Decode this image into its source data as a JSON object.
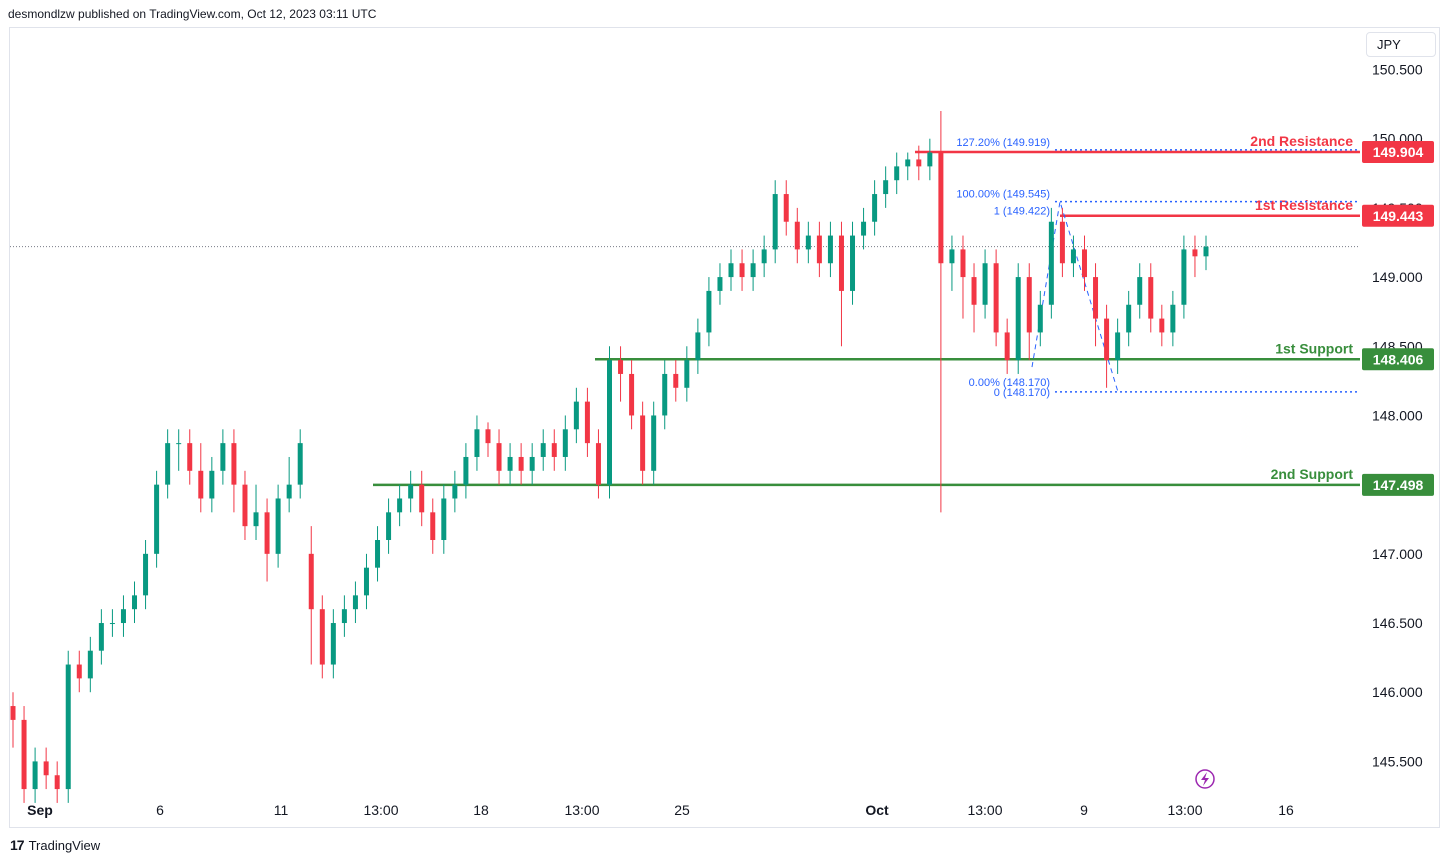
{
  "header": {
    "text": "desmondlzw published on TradingView.com, Oct 12, 2023 03:11 UTC"
  },
  "currency": "JPY",
  "footer": {
    "brand": "TradingView"
  },
  "colors": {
    "up": "#089981",
    "down": "#f23645",
    "support": "#388e3c",
    "resistance": "#f23645",
    "fib": "#2962ff"
  },
  "chart_data": {
    "type": "candlestick",
    "title": "",
    "y_ticks": [
      "150.500",
      "150.000",
      "149.500",
      "149.000",
      "148.500",
      "148.000",
      "147.000",
      "146.500",
      "146.000",
      "145.500"
    ],
    "x_ticks": [
      "Sep",
      "6",
      "11",
      "13:00",
      "18",
      "13:00",
      "25",
      "Oct",
      "13:00",
      "9",
      "13:00",
      "16"
    ],
    "ylim": [
      145.25,
      150.8
    ],
    "levels": [
      {
        "label": "2nd Resistance",
        "value": "149.904",
        "kind": "resistance"
      },
      {
        "label": "1st Resistance",
        "value": "149.443",
        "kind": "resistance"
      },
      {
        "label": "1st Support",
        "value": "148.406",
        "kind": "support"
      },
      {
        "label": "2nd Support",
        "value": "147.498",
        "kind": "support"
      }
    ],
    "fib_labels": [
      {
        "text": "127.20% (149.919)",
        "value": 149.919
      },
      {
        "text": "100.00% (149.545)",
        "value": 149.545
      },
      {
        "text": "1 (149.422)",
        "value": 149.422
      },
      {
        "text": "0.00% (148.170)",
        "value": 148.17
      },
      {
        "text": "0 (148.170)",
        "value": 148.17
      }
    ],
    "last_price": 149.22,
    "candles": [
      [
        145.9,
        145.8,
        146.0,
        145.6
      ],
      [
        145.8,
        145.3,
        145.9,
        145.2
      ],
      [
        145.3,
        145.5,
        145.6,
        145.2
      ],
      [
        145.5,
        145.4,
        145.6,
        145.3
      ],
      [
        145.4,
        145.3,
        145.5,
        145.2
      ],
      [
        145.3,
        146.2,
        146.3,
        145.2
      ],
      [
        146.2,
        146.1,
        146.3,
        146.0
      ],
      [
        146.1,
        146.3,
        146.4,
        146.0
      ],
      [
        146.3,
        146.5,
        146.6,
        146.2
      ],
      [
        146.5,
        146.5,
        146.6,
        146.4
      ],
      [
        146.5,
        146.6,
        146.7,
        146.4
      ],
      [
        146.6,
        146.7,
        146.8,
        146.5
      ],
      [
        146.7,
        147.0,
        147.1,
        146.6
      ],
      [
        147.0,
        147.5,
        147.6,
        146.9
      ],
      [
        147.5,
        147.8,
        147.9,
        147.4
      ],
      [
        147.8,
        147.8,
        147.9,
        147.6
      ],
      [
        147.8,
        147.6,
        147.9,
        147.5
      ],
      [
        147.6,
        147.4,
        147.8,
        147.3
      ],
      [
        147.4,
        147.6,
        147.7,
        147.3
      ],
      [
        147.6,
        147.8,
        147.9,
        147.5
      ],
      [
        147.8,
        147.5,
        147.9,
        147.3
      ],
      [
        147.5,
        147.2,
        147.6,
        147.1
      ],
      [
        147.2,
        147.3,
        147.5,
        147.1
      ],
      [
        147.3,
        147.0,
        147.4,
        146.8
      ],
      [
        147.0,
        147.4,
        147.5,
        146.9
      ],
      [
        147.4,
        147.5,
        147.7,
        147.3
      ],
      [
        147.5,
        147.8,
        147.9,
        147.4
      ],
      [
        147.0,
        146.6,
        147.2,
        146.2
      ],
      [
        146.6,
        146.2,
        146.7,
        146.1
      ],
      [
        146.2,
        146.5,
        146.6,
        146.1
      ],
      [
        146.5,
        146.6,
        146.7,
        146.4
      ],
      [
        146.6,
        146.7,
        146.8,
        146.5
      ],
      [
        146.7,
        146.9,
        147.0,
        146.6
      ],
      [
        146.9,
        147.1,
        147.2,
        146.8
      ],
      [
        147.1,
        147.3,
        147.4,
        147.0
      ],
      [
        147.3,
        147.4,
        147.5,
        147.2
      ],
      [
        147.4,
        147.5,
        147.6,
        147.3
      ],
      [
        147.5,
        147.3,
        147.6,
        147.2
      ],
      [
        147.3,
        147.1,
        147.4,
        147.0
      ],
      [
        147.1,
        147.4,
        147.5,
        147.0
      ],
      [
        147.4,
        147.5,
        147.6,
        147.3
      ],
      [
        147.5,
        147.7,
        147.8,
        147.4
      ],
      [
        147.7,
        147.9,
        148.0,
        147.6
      ],
      [
        147.9,
        147.8,
        147.95,
        147.7
      ],
      [
        147.8,
        147.6,
        147.9,
        147.5
      ],
      [
        147.6,
        147.7,
        147.8,
        147.5
      ],
      [
        147.7,
        147.6,
        147.8,
        147.5
      ],
      [
        147.6,
        147.7,
        147.8,
        147.5
      ],
      [
        147.7,
        147.8,
        147.9,
        147.6
      ],
      [
        147.8,
        147.7,
        147.9,
        147.6
      ],
      [
        147.7,
        147.9,
        148.0,
        147.6
      ],
      [
        147.9,
        148.1,
        148.2,
        147.8
      ],
      [
        148.1,
        147.8,
        148.2,
        147.7
      ],
      [
        147.8,
        147.5,
        147.9,
        147.4
      ],
      [
        147.5,
        148.4,
        148.5,
        147.4
      ],
      [
        148.4,
        148.3,
        148.5,
        148.1
      ],
      [
        148.3,
        148.0,
        148.4,
        147.9
      ],
      [
        148.0,
        147.6,
        148.1,
        147.5
      ],
      [
        147.6,
        148.0,
        148.1,
        147.5
      ],
      [
        148.0,
        148.3,
        148.4,
        147.9
      ],
      [
        148.3,
        148.2,
        148.4,
        148.1
      ],
      [
        148.2,
        148.4,
        148.5,
        148.1
      ],
      [
        148.4,
        148.6,
        148.7,
        148.3
      ],
      [
        148.6,
        148.9,
        149.0,
        148.5
      ],
      [
        148.9,
        149.0,
        149.1,
        148.8
      ],
      [
        149.0,
        149.1,
        149.2,
        148.9
      ],
      [
        149.1,
        149.0,
        149.2,
        148.9
      ],
      [
        149.0,
        149.1,
        149.2,
        148.9
      ],
      [
        149.1,
        149.2,
        149.3,
        149.0
      ],
      [
        149.2,
        149.6,
        149.7,
        149.1
      ],
      [
        149.6,
        149.4,
        149.7,
        149.3
      ],
      [
        149.4,
        149.2,
        149.5,
        149.1
      ],
      [
        149.2,
        149.3,
        149.4,
        149.1
      ],
      [
        149.3,
        149.1,
        149.4,
        149.0
      ],
      [
        149.1,
        149.3,
        149.4,
        149.0
      ],
      [
        149.3,
        148.9,
        149.4,
        148.5
      ],
      [
        148.9,
        149.3,
        149.4,
        148.8
      ],
      [
        149.3,
        149.4,
        149.5,
        149.2
      ],
      [
        149.4,
        149.6,
        149.7,
        149.3
      ],
      [
        149.6,
        149.7,
        149.8,
        149.5
      ],
      [
        149.7,
        149.8,
        149.9,
        149.6
      ],
      [
        149.8,
        149.85,
        149.9,
        149.7
      ],
      [
        149.85,
        149.8,
        149.95,
        149.7
      ],
      [
        149.8,
        149.9,
        150.0,
        149.7
      ],
      [
        149.9,
        149.1,
        150.2,
        147.3
      ],
      [
        149.1,
        149.2,
        149.3,
        148.9
      ],
      [
        149.2,
        149.0,
        149.3,
        148.7
      ],
      [
        149.0,
        148.8,
        149.1,
        148.6
      ],
      [
        148.8,
        149.1,
        149.2,
        148.7
      ],
      [
        149.1,
        148.6,
        149.2,
        148.5
      ],
      [
        148.6,
        148.4,
        148.7,
        148.3
      ],
      [
        148.4,
        149.0,
        149.1,
        148.3
      ],
      [
        149.0,
        148.6,
        149.1,
        148.4
      ],
      [
        148.6,
        148.8,
        148.9,
        148.5
      ],
      [
        148.8,
        149.4,
        149.5,
        148.7
      ],
      [
        149.4,
        149.1,
        149.5,
        149.0
      ],
      [
        149.1,
        149.2,
        149.3,
        149.0
      ],
      [
        149.2,
        149.0,
        149.3,
        148.9
      ],
      [
        149.0,
        148.7,
        149.1,
        148.5
      ],
      [
        148.7,
        148.4,
        148.8,
        148.2
      ],
      [
        148.4,
        148.6,
        148.7,
        148.3
      ],
      [
        148.6,
        148.8,
        148.9,
        148.5
      ],
      [
        148.8,
        149.0,
        149.1,
        148.7
      ],
      [
        149.0,
        148.7,
        149.1,
        148.6
      ],
      [
        148.7,
        148.6,
        148.8,
        148.5
      ],
      [
        148.6,
        148.8,
        148.9,
        148.5
      ],
      [
        148.8,
        149.2,
        149.3,
        148.7
      ],
      [
        149.2,
        149.15,
        149.3,
        149.0
      ],
      [
        149.15,
        149.22,
        149.3,
        149.05
      ]
    ]
  }
}
